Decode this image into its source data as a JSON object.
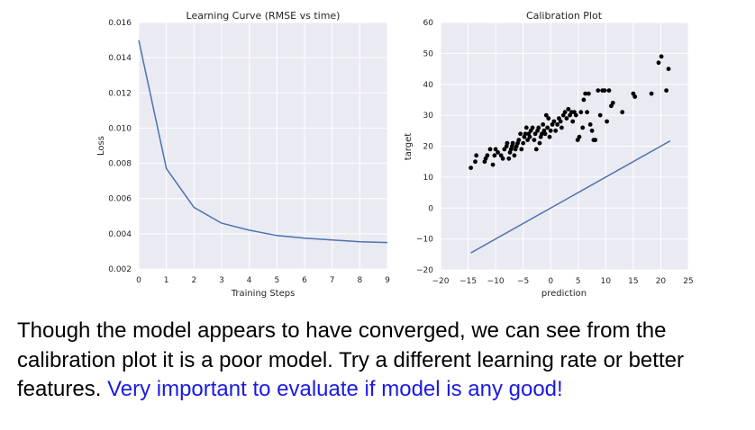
{
  "caption": {
    "text": "Though the model appears to have converged, we can see from the calibration plot it is a poor model. Try a different learning rate or better features.  ",
    "highlight": "Very important to evaluate if model is any good!",
    "highlight_color": "#1a1ae6"
  },
  "style": {
    "plot_background": "#eaeaf2",
    "grid_color": "#ffffff",
    "line_color": "#4c72b0",
    "point_color": "#000000"
  },
  "chart_data": [
    {
      "type": "line",
      "title": "Learning Curve (RMSE vs time)",
      "xlabel": "Training Steps",
      "ylabel": "Loss",
      "xlim": [
        0,
        9
      ],
      "ylim": [
        0.002,
        0.016
      ],
      "grid": true,
      "xticks": [
        "0",
        "1",
        "2",
        "3",
        "4",
        "5",
        "6",
        "7",
        "8",
        "9"
      ],
      "yticks": [
        "0.002",
        "0.004",
        "0.006",
        "0.008",
        "0.010",
        "0.012",
        "0.014",
        "0.016"
      ],
      "x": [
        0,
        1,
        2,
        3,
        4,
        5,
        6,
        7,
        8,
        9
      ],
      "y": [
        0.015,
        0.0077,
        0.0055,
        0.0046,
        0.0042,
        0.0039,
        0.00375,
        0.00365,
        0.00355,
        0.0035
      ]
    },
    {
      "type": "scatter",
      "title": "Calibration Plot",
      "xlabel": "prediction",
      "ylabel": "target",
      "xlim": [
        -20,
        25
      ],
      "ylim": [
        -20,
        60
      ],
      "grid": true,
      "xticks": [
        "−20",
        "−15",
        "−10",
        "−5",
        "0",
        "5",
        "10",
        "15",
        "20",
        "25"
      ],
      "yticks": [
        "−20",
        "−10",
        "0",
        "10",
        "20",
        "30",
        "40",
        "50",
        "60"
      ],
      "line": {
        "x": [
          -14.5,
          21.7
        ],
        "y": [
          -14.5,
          21.7
        ]
      },
      "points": [
        [
          -14.5,
          13
        ],
        [
          -13.7,
          15
        ],
        [
          -13.5,
          17
        ],
        [
          -12,
          15
        ],
        [
          -11.8,
          16
        ],
        [
          -11.5,
          17
        ],
        [
          -11,
          19
        ],
        [
          -10.5,
          14
        ],
        [
          -10.2,
          17
        ],
        [
          -10,
          19
        ],
        [
          -9.6,
          18
        ],
        [
          -9,
          17
        ],
        [
          -8.7,
          16
        ],
        [
          -8.4,
          19
        ],
        [
          -8,
          20
        ],
        [
          -7.9,
          21
        ],
        [
          -7.6,
          16
        ],
        [
          -7.4,
          18
        ],
        [
          -7.2,
          19
        ],
        [
          -7,
          20
        ],
        [
          -6.9,
          21
        ],
        [
          -6.6,
          17
        ],
        [
          -6.4,
          19
        ],
        [
          -6.2,
          20
        ],
        [
          -6,
          21
        ],
        [
          -5.8,
          22
        ],
        [
          -5.5,
          24
        ],
        [
          -5.3,
          19
        ],
        [
          -5,
          21
        ],
        [
          -4.8,
          23
        ],
        [
          -4.6,
          24
        ],
        [
          -4.4,
          26
        ],
        [
          -4.2,
          22
        ],
        [
          -4,
          24
        ],
        [
          -3.8,
          23
        ],
        [
          -3.6,
          25
        ],
        [
          -3.3,
          26
        ],
        [
          -3,
          22
        ],
        [
          -2.8,
          24
        ],
        [
          -2.6,
          19
        ],
        [
          -2.4,
          25
        ],
        [
          -2.2,
          26
        ],
        [
          -2,
          21
        ],
        [
          -1.8,
          23
        ],
        [
          -1.6,
          24
        ],
        [
          -1.4,
          27
        ],
        [
          -1.2,
          25
        ],
        [
          -1,
          24
        ],
        [
          -0.8,
          30
        ],
        [
          -0.6,
          26
        ],
        [
          -0.4,
          29
        ],
        [
          -0.2,
          23
        ],
        [
          0,
          25
        ],
        [
          0.3,
          27
        ],
        [
          0.6,
          28
        ],
        [
          0.9,
          25
        ],
        [
          1.2,
          27
        ],
        [
          1.5,
          29
        ],
        [
          1.8,
          28
        ],
        [
          2,
          26
        ],
        [
          2.3,
          30
        ],
        [
          2.6,
          31
        ],
        [
          2.9,
          29
        ],
        [
          3.2,
          32
        ],
        [
          3.5,
          30
        ],
        [
          3.8,
          31
        ],
        [
          4,
          28
        ],
        [
          4.3,
          31
        ],
        [
          4.6,
          30
        ],
        [
          4.9,
          22
        ],
        [
          5.2,
          23
        ],
        [
          5.5,
          31
        ],
        [
          5.8,
          26
        ],
        [
          6,
          35
        ],
        [
          6.3,
          37
        ],
        [
          6.6,
          31
        ],
        [
          6.9,
          37
        ],
        [
          7.2,
          27
        ],
        [
          7.5,
          25
        ],
        [
          7.8,
          22
        ],
        [
          8.1,
          22
        ],
        [
          8.6,
          38
        ],
        [
          9,
          30
        ],
        [
          9.4,
          38
        ],
        [
          9.8,
          38
        ],
        [
          10.2,
          28
        ],
        [
          10.6,
          38
        ],
        [
          11,
          33
        ],
        [
          11.3,
          34
        ],
        [
          13,
          31
        ],
        [
          15,
          37
        ],
        [
          15.3,
          36
        ],
        [
          18.3,
          37
        ],
        [
          19.6,
          47
        ],
        [
          20.1,
          49
        ],
        [
          21,
          38
        ],
        [
          21.4,
          45
        ]
      ]
    }
  ]
}
